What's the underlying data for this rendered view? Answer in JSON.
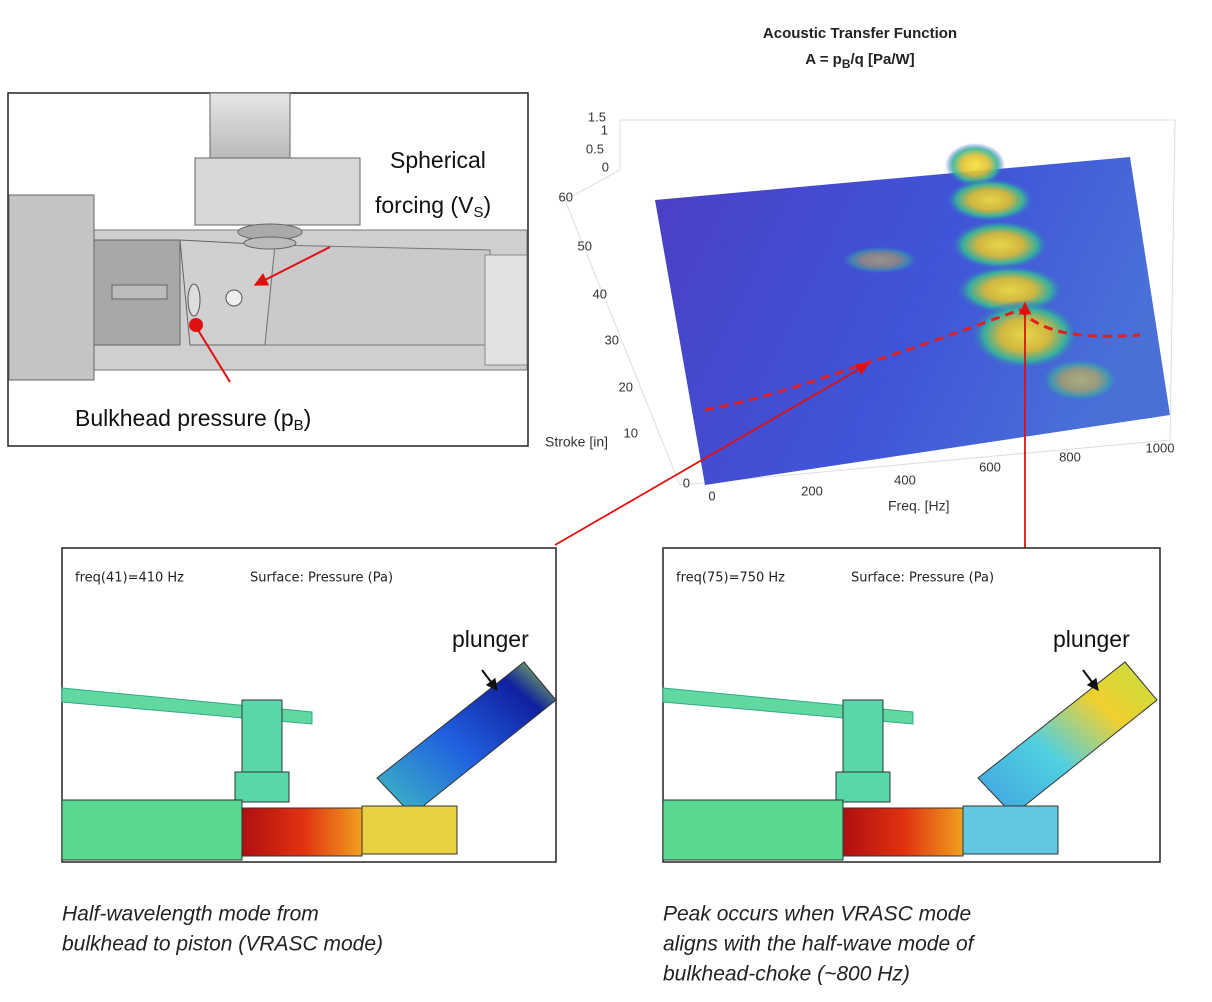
{
  "left_panel": {
    "spherical_1": "Spherical",
    "spherical_2": "forcing (V",
    "spherical_sub": "S",
    "spherical_end": ")",
    "bulkhead": "Bulkhead pressure (p",
    "bulkhead_sub": "B",
    "bulkhead_end": ")"
  },
  "plot": {
    "title_1": "Acoustic Transfer Function",
    "title_2a": "A = p",
    "title_2_sub": "B",
    "title_2b": "/q [Pa/W]",
    "z_ticks": [
      "1.5",
      "1",
      "0.5",
      "0"
    ],
    "y_label": "Stroke [in]",
    "y_ticks": [
      "60",
      "50",
      "40",
      "30",
      "20",
      "10",
      "0"
    ],
    "x_label": "Freq. [Hz]",
    "x_ticks": [
      "0",
      "200",
      "400",
      "600",
      "800",
      "1000"
    ]
  },
  "sim_panels": [
    {
      "header_freq": "freq(41)=410 Hz",
      "header_surface": "Surface: Pressure (Pa)",
      "label": "plunger",
      "caption": [
        "Half-wavelength mode from",
        "bulkhead to piston (VRASC mode)"
      ]
    },
    {
      "header_freq": "freq(75)=750 Hz",
      "header_surface": "Surface: Pressure (Pa)",
      "label": "plunger",
      "caption": [
        "Peak occurs when VRASC mode",
        "aligns with the half-wave mode of",
        "bulkhead-choke (~800 Hz)"
      ]
    }
  ]
}
